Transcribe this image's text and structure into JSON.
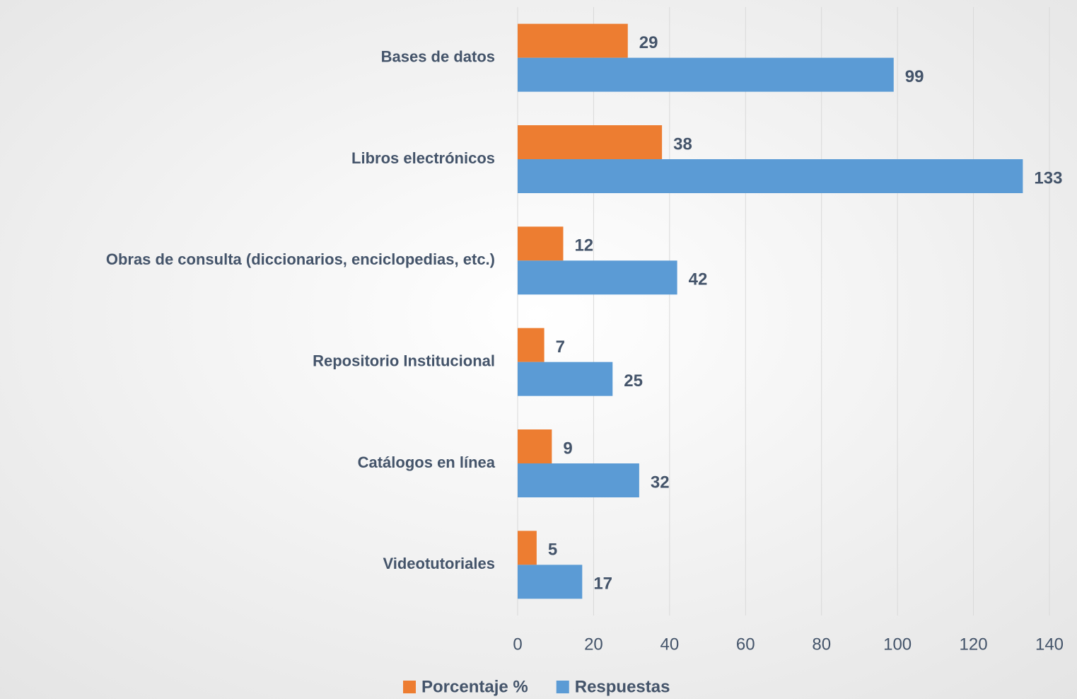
{
  "chart_data": {
    "type": "bar",
    "orientation": "horizontal",
    "categories": [
      "Bases de datos",
      "Libros electrónicos",
      "Obras de consulta (diccionarios, enciclopedias, etc.)",
      "Repositorio Institucional",
      "Catálogos en línea",
      "Videotutoriales"
    ],
    "series": [
      {
        "name": "Porcentaje %",
        "color": "#ed7d31",
        "values": [
          29,
          38,
          12,
          7,
          9,
          5
        ]
      },
      {
        "name": "Respuestas",
        "color": "#5b9bd5",
        "values": [
          99,
          133,
          42,
          25,
          32,
          17
        ]
      }
    ],
    "xlim": [
      0,
      140
    ],
    "xticks": [
      0,
      20,
      40,
      60,
      80,
      100,
      120,
      140
    ],
    "grid": true,
    "legend": "bottom"
  }
}
